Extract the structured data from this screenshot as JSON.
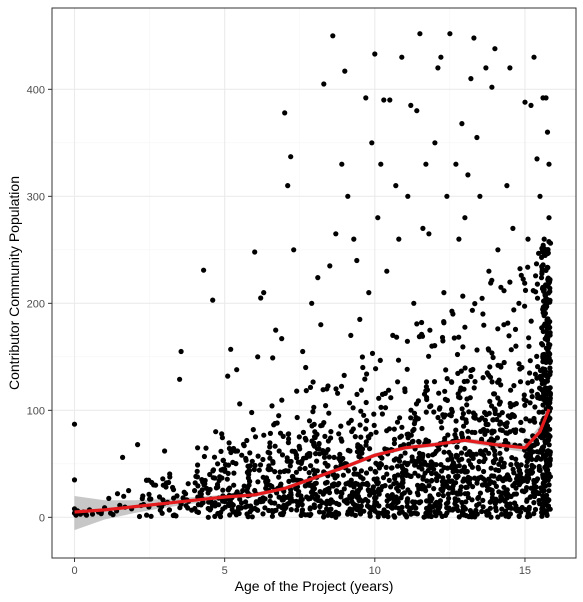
{
  "chart_data": {
    "type": "scatter",
    "title": "",
    "xlabel": "Age of the Project (years)",
    "ylabel": "Contributor Community Population",
    "xlim": [
      -0.75,
      16.7
    ],
    "ylim": [
      -38,
      476
    ],
    "x_ticks": [
      0,
      5,
      10,
      15
    ],
    "y_ticks": [
      0,
      100,
      200,
      300,
      400
    ],
    "x_tick_labels": [
      "0",
      "5",
      "10",
      "15"
    ],
    "y_tick_labels": [
      "0",
      "100",
      "200",
      "300",
      "400"
    ],
    "grid": true,
    "legend": "none",
    "colors": {
      "points": "#000000",
      "smooth_line": "#e41a1c",
      "confidence_band": "#999999",
      "panel_border": "#333333",
      "grid_major": "#ebebeb",
      "grid_minor": "#f5f5f5"
    },
    "series": [
      {
        "type": "scatter",
        "note_points": "Approximate representative sample of visible points",
        "points": [
          [
            0.0,
            87
          ],
          [
            0.0,
            35
          ],
          [
            0.0,
            8
          ],
          [
            0.0,
            4
          ],
          [
            0.05,
            2
          ],
          [
            0.1,
            6
          ],
          [
            0.2,
            3
          ],
          [
            0.3,
            5
          ],
          [
            0.4,
            2
          ],
          [
            0.5,
            7
          ],
          [
            0.6,
            3
          ],
          [
            0.8,
            5
          ],
          [
            1.0,
            9
          ],
          [
            1.2,
            4
          ],
          [
            1.4,
            6
          ],
          [
            1.6,
            56
          ],
          [
            1.8,
            25
          ],
          [
            1.9,
            8
          ],
          [
            2.1,
            68
          ],
          [
            2.3,
            12
          ],
          [
            2.5,
            17
          ],
          [
            2.7,
            30
          ],
          [
            2.9,
            10
          ],
          [
            3.0,
            62
          ],
          [
            3.1,
            14
          ],
          [
            3.3,
            18
          ],
          [
            3.5,
            129
          ],
          [
            3.55,
            155
          ],
          [
            3.7,
            22
          ],
          [
            3.8,
            15
          ],
          [
            4.0,
            25
          ],
          [
            4.1,
            65
          ],
          [
            4.3,
            231
          ],
          [
            4.4,
            27
          ],
          [
            4.5,
            40
          ],
          [
            4.6,
            203
          ],
          [
            4.7,
            80
          ],
          [
            4.8,
            18
          ],
          [
            4.9,
            78
          ],
          [
            5.0,
            45
          ],
          [
            5.1,
            132
          ],
          [
            5.2,
            157
          ],
          [
            5.3,
            30
          ],
          [
            5.4,
            138
          ],
          [
            5.5,
            106
          ],
          [
            5.6,
            25
          ],
          [
            5.7,
            55
          ],
          [
            5.8,
            40
          ],
          [
            5.9,
            98
          ],
          [
            6.0,
            248
          ],
          [
            6.1,
            150
          ],
          [
            6.2,
            205
          ],
          [
            6.3,
            210
          ],
          [
            6.4,
            33
          ],
          [
            6.5,
            60
          ],
          [
            6.6,
            149
          ],
          [
            6.7,
            175
          ],
          [
            6.8,
            95
          ],
          [
            6.9,
            167
          ],
          [
            7.0,
            378
          ],
          [
            7.1,
            310
          ],
          [
            7.2,
            337
          ],
          [
            7.3,
            250
          ],
          [
            7.4,
            118
          ],
          [
            7.5,
            64
          ],
          [
            7.6,
            155
          ],
          [
            7.7,
            140
          ],
          [
            7.8,
            30
          ],
          [
            7.9,
            200
          ],
          [
            8.0,
            80
          ],
          [
            8.1,
            224
          ],
          [
            8.2,
            180
          ],
          [
            8.3,
            405
          ],
          [
            8.4,
            120
          ],
          [
            8.5,
            235
          ],
          [
            8.6,
            450
          ],
          [
            8.7,
            265
          ],
          [
            8.8,
            55
          ],
          [
            8.9,
            330
          ],
          [
            9.0,
            417
          ],
          [
            9.1,
            300
          ],
          [
            9.2,
            170
          ],
          [
            9.3,
            260
          ],
          [
            9.4,
            240
          ],
          [
            9.5,
            185
          ],
          [
            9.6,
            140
          ],
          [
            9.7,
            392
          ],
          [
            9.8,
            210
          ],
          [
            9.9,
            350
          ],
          [
            10.0,
            433
          ],
          [
            10.1,
            280
          ],
          [
            10.2,
            330
          ],
          [
            10.3,
            390
          ],
          [
            10.4,
            230
          ],
          [
            10.5,
            390
          ],
          [
            10.6,
            170
          ],
          [
            10.7,
            310
          ],
          [
            10.8,
            260
          ],
          [
            10.9,
            430
          ],
          [
            11.0,
            120
          ],
          [
            11.1,
            300
          ],
          [
            11.2,
            385
          ],
          [
            11.3,
            200
          ],
          [
            11.4,
            380
          ],
          [
            11.5,
            452
          ],
          [
            11.6,
            270
          ],
          [
            11.7,
            330
          ],
          [
            11.8,
            265
          ],
          [
            11.9,
            160
          ],
          [
            12.0,
            350
          ],
          [
            12.1,
            420
          ],
          [
            12.2,
            430
          ],
          [
            12.3,
            210
          ],
          [
            12.4,
            300
          ],
          [
            12.5,
            452
          ],
          [
            12.6,
            190
          ],
          [
            12.7,
            330
          ],
          [
            12.8,
            260
          ],
          [
            12.9,
            368
          ],
          [
            13.0,
            280
          ],
          [
            13.1,
            320
          ],
          [
            13.2,
            410
          ],
          [
            13.3,
            448
          ],
          [
            13.4,
            355
          ],
          [
            13.5,
            300
          ],
          [
            13.6,
            190
          ],
          [
            13.7,
            420
          ],
          [
            13.8,
            230
          ],
          [
            13.9,
            402
          ],
          [
            14.0,
            438
          ],
          [
            14.1,
            250
          ],
          [
            14.2,
            215
          ],
          [
            14.3,
            180
          ],
          [
            14.4,
            310
          ],
          [
            14.5,
            420
          ],
          [
            14.6,
            270
          ],
          [
            14.7,
            160
          ],
          [
            14.8,
            200
          ],
          [
            14.9,
            140
          ],
          [
            15.0,
            388
          ],
          [
            15.1,
            260
          ],
          [
            15.2,
            385
          ],
          [
            15.3,
            430
          ],
          [
            15.4,
            335
          ],
          [
            15.5,
            300
          ],
          [
            15.6,
            392
          ],
          [
            15.7,
            392
          ],
          [
            15.75,
            360
          ],
          [
            15.8,
            330
          ],
          [
            15.8,
            280
          ]
        ]
      },
      {
        "type": "smooth",
        "name": "",
        "points": [
          [
            0,
            5
          ],
          [
            1,
            7
          ],
          [
            2,
            10
          ],
          [
            3,
            13
          ],
          [
            4,
            16
          ],
          [
            5,
            19
          ],
          [
            6,
            21
          ],
          [
            7,
            27
          ],
          [
            8,
            37
          ],
          [
            9,
            47
          ],
          [
            10,
            58
          ],
          [
            11,
            65
          ],
          [
            12,
            68
          ],
          [
            13,
            72
          ],
          [
            14,
            68
          ],
          [
            15,
            65
          ],
          [
            15.5,
            80
          ],
          [
            15.8,
            101
          ]
        ],
        "ci_upper": [
          [
            0,
            20
          ],
          [
            1,
            16
          ],
          [
            2,
            16
          ],
          [
            3,
            17
          ],
          [
            4,
            19
          ],
          [
            5,
            21
          ],
          [
            6,
            23
          ],
          [
            7,
            29
          ],
          [
            8,
            39
          ],
          [
            9,
            49
          ],
          [
            10,
            60
          ],
          [
            11,
            67
          ],
          [
            12,
            70
          ],
          [
            13,
            74
          ],
          [
            14,
            71
          ],
          [
            15,
            69
          ],
          [
            15.5,
            86
          ],
          [
            15.8,
            107
          ]
        ],
        "ci_lower": [
          [
            0,
            -12
          ],
          [
            1,
            -2
          ],
          [
            2,
            4
          ],
          [
            3,
            9
          ],
          [
            4,
            13
          ],
          [
            5,
            17
          ],
          [
            6,
            19
          ],
          [
            7,
            25
          ],
          [
            8,
            35
          ],
          [
            9,
            45
          ],
          [
            10,
            56
          ],
          [
            11,
            63
          ],
          [
            12,
            66
          ],
          [
            13,
            70
          ],
          [
            14,
            65
          ],
          [
            15,
            61
          ],
          [
            15.5,
            74
          ],
          [
            15.8,
            95
          ]
        ]
      }
    ]
  }
}
